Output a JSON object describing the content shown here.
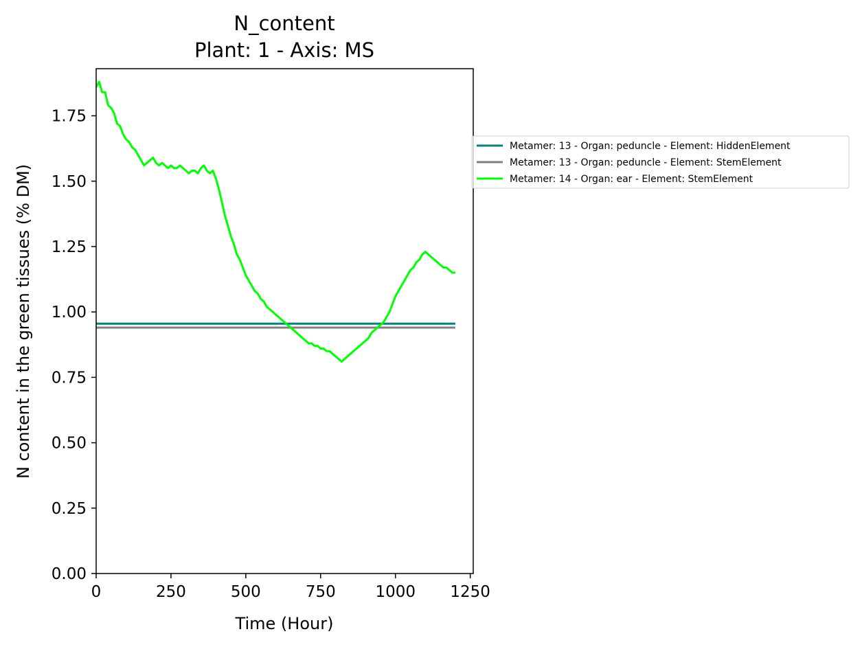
{
  "chart_data": {
    "type": "line",
    "title": "N_content",
    "subtitle": "Plant: 1 - Axis: MS",
    "xlabel": "Time (Hour)",
    "ylabel": "N content in the green tissues (% DM)",
    "xlim": [
      0,
      1260
    ],
    "ylim": [
      0,
      1.93
    ],
    "xticks": [
      0,
      250,
      500,
      750,
      1000,
      1250
    ],
    "xtick_labels": [
      "0",
      "250",
      "500",
      "750",
      "1000",
      "1250"
    ],
    "yticks": [
      0,
      0.25,
      0.5,
      0.75,
      1.0,
      1.25,
      1.5,
      1.75
    ],
    "ytick_labels": [
      "0.00",
      "0.25",
      "0.50",
      "0.75",
      "1.00",
      "1.25",
      "1.50",
      "1.75"
    ],
    "grid": false,
    "legend_position": "outside-right",
    "series": [
      {
        "name": "Metamer: 13 - Organ: peduncle - Element: HiddenElement",
        "color": "#008080",
        "x": [
          0,
          1200
        ],
        "y": [
          0.955,
          0.955
        ]
      },
      {
        "name": "Metamer: 13 - Organ: peduncle - Element: StemElement",
        "color": "#808080",
        "x": [
          0,
          1200
        ],
        "y": [
          0.94,
          0.94
        ]
      },
      {
        "name": "Metamer: 14 - Organ: ear - Element: StemElement",
        "color": "#00ff00",
        "x": [
          0,
          10,
          20,
          30,
          40,
          50,
          60,
          70,
          80,
          90,
          100,
          110,
          120,
          130,
          140,
          150,
          160,
          170,
          180,
          190,
          200,
          210,
          220,
          230,
          240,
          250,
          260,
          270,
          280,
          290,
          300,
          310,
          320,
          330,
          340,
          350,
          360,
          370,
          380,
          390,
          400,
          410,
          420,
          430,
          440,
          450,
          460,
          470,
          480,
          490,
          500,
          510,
          520,
          530,
          540,
          550,
          560,
          570,
          580,
          590,
          600,
          610,
          620,
          630,
          640,
          650,
          660,
          670,
          680,
          690,
          700,
          710,
          720,
          730,
          740,
          750,
          760,
          770,
          780,
          790,
          800,
          810,
          820,
          830,
          840,
          850,
          860,
          870,
          880,
          890,
          900,
          910,
          920,
          930,
          940,
          950,
          960,
          970,
          980,
          990,
          1000,
          1010,
          1020,
          1030,
          1040,
          1050,
          1060,
          1070,
          1080,
          1090,
          1100,
          1110,
          1120,
          1130,
          1140,
          1150,
          1160,
          1170,
          1180,
          1190,
          1200
        ],
        "y": [
          1.86,
          1.88,
          1.84,
          1.84,
          1.79,
          1.78,
          1.76,
          1.72,
          1.71,
          1.68,
          1.66,
          1.65,
          1.63,
          1.62,
          1.6,
          1.58,
          1.56,
          1.57,
          1.58,
          1.59,
          1.57,
          1.56,
          1.57,
          1.56,
          1.55,
          1.56,
          1.55,
          1.55,
          1.56,
          1.55,
          1.54,
          1.53,
          1.54,
          1.54,
          1.53,
          1.55,
          1.56,
          1.54,
          1.53,
          1.54,
          1.51,
          1.47,
          1.42,
          1.37,
          1.33,
          1.29,
          1.26,
          1.22,
          1.2,
          1.17,
          1.14,
          1.12,
          1.1,
          1.08,
          1.07,
          1.05,
          1.04,
          1.02,
          1.01,
          1.0,
          0.99,
          0.98,
          0.97,
          0.96,
          0.95,
          0.94,
          0.93,
          0.92,
          0.91,
          0.9,
          0.89,
          0.88,
          0.88,
          0.87,
          0.87,
          0.86,
          0.86,
          0.85,
          0.85,
          0.84,
          0.83,
          0.82,
          0.81,
          0.82,
          0.83,
          0.84,
          0.85,
          0.86,
          0.87,
          0.88,
          0.89,
          0.9,
          0.92,
          0.93,
          0.94,
          0.95,
          0.96,
          0.98,
          1.0,
          1.03,
          1.06,
          1.08,
          1.1,
          1.12,
          1.14,
          1.16,
          1.17,
          1.19,
          1.2,
          1.22,
          1.23,
          1.22,
          1.21,
          1.2,
          1.19,
          1.18,
          1.17,
          1.17,
          1.16,
          1.15,
          1.15
        ]
      }
    ]
  }
}
